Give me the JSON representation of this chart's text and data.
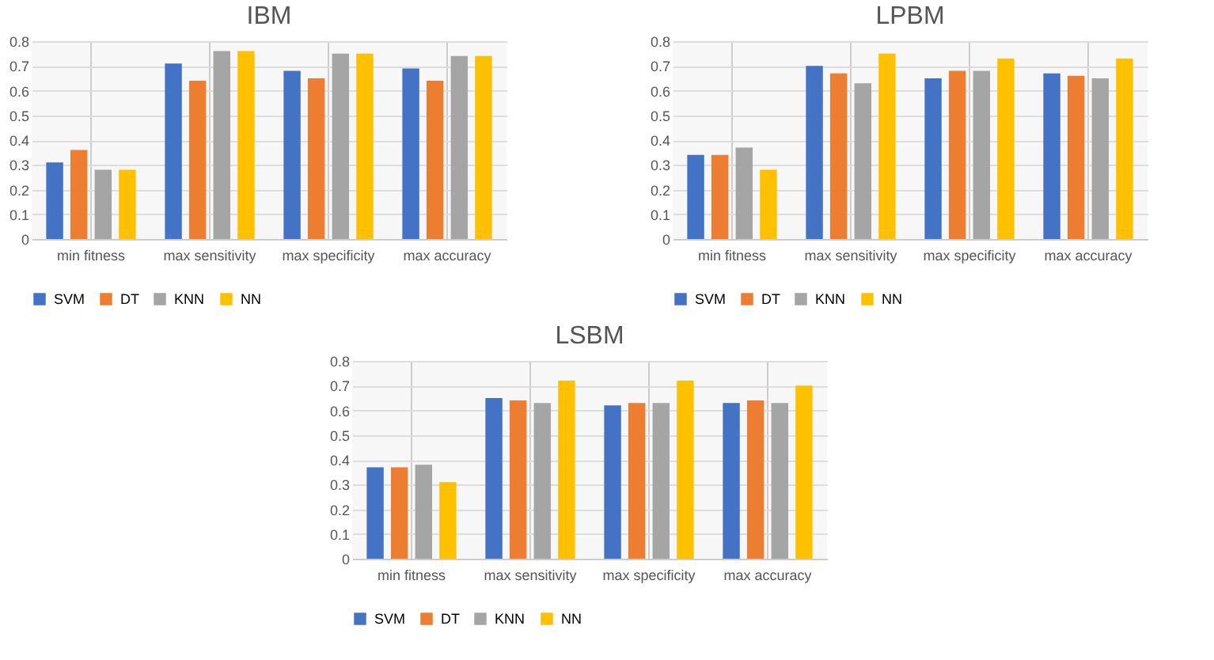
{
  "chart_data": [
    {
      "type": "bar",
      "title": "IBM",
      "categories": [
        "min fitness",
        "max sensitivity",
        "max specificity",
        "max accuracy"
      ],
      "ylim": [
        0,
        0.8
      ],
      "yticks": [
        0,
        0.1,
        0.2,
        0.3,
        0.4,
        0.5,
        0.6,
        0.7,
        0.8
      ],
      "grid": true,
      "legend": "bottom",
      "series": [
        {
          "name": "SVM",
          "color": "#4472c4",
          "values": [
            0.31,
            0.71,
            0.68,
            0.69
          ]
        },
        {
          "name": "DT",
          "color": "#ed7d31",
          "values": [
            0.36,
            0.64,
            0.65,
            0.64
          ]
        },
        {
          "name": "KNN",
          "color": "#a5a5a5",
          "values": [
            0.28,
            0.76,
            0.75,
            0.74
          ]
        },
        {
          "name": "NN",
          "color": "#ffc000",
          "values": [
            0.28,
            0.76,
            0.75,
            0.74
          ]
        }
      ]
    },
    {
      "type": "bar",
      "title": "LPBM",
      "categories": [
        "min fitness",
        "max sensitivity",
        "max specificity",
        "max accuracy"
      ],
      "ylim": [
        0,
        0.8
      ],
      "yticks": [
        0,
        0.1,
        0.2,
        0.3,
        0.4,
        0.5,
        0.6,
        0.7,
        0.8
      ],
      "grid": true,
      "legend": "bottom",
      "series": [
        {
          "name": "SVM",
          "color": "#4472c4",
          "values": [
            0.34,
            0.7,
            0.65,
            0.67
          ]
        },
        {
          "name": "DT",
          "color": "#ed7d31",
          "values": [
            0.34,
            0.67,
            0.68,
            0.66
          ]
        },
        {
          "name": "KNN",
          "color": "#a5a5a5",
          "values": [
            0.37,
            0.63,
            0.68,
            0.65
          ]
        },
        {
          "name": "NN",
          "color": "#ffc000",
          "values": [
            0.28,
            0.75,
            0.73,
            0.73
          ]
        }
      ]
    },
    {
      "type": "bar",
      "title": "LSBM",
      "categories": [
        "min fitness",
        "max sensitivity",
        "max specificity",
        "max accuracy"
      ],
      "ylim": [
        0,
        0.8
      ],
      "yticks": [
        0,
        0.1,
        0.2,
        0.3,
        0.4,
        0.5,
        0.6,
        0.7,
        0.8
      ],
      "grid": true,
      "legend": "bottom",
      "series": [
        {
          "name": "SVM",
          "color": "#4472c4",
          "values": [
            0.37,
            0.65,
            0.62,
            0.63
          ]
        },
        {
          "name": "DT",
          "color": "#ed7d31",
          "values": [
            0.37,
            0.64,
            0.63,
            0.64
          ]
        },
        {
          "name": "KNN",
          "color": "#a5a5a5",
          "values": [
            0.38,
            0.63,
            0.63,
            0.63
          ]
        },
        {
          "name": "NN",
          "color": "#ffc000",
          "values": [
            0.31,
            0.72,
            0.72,
            0.7
          ]
        }
      ]
    }
  ]
}
